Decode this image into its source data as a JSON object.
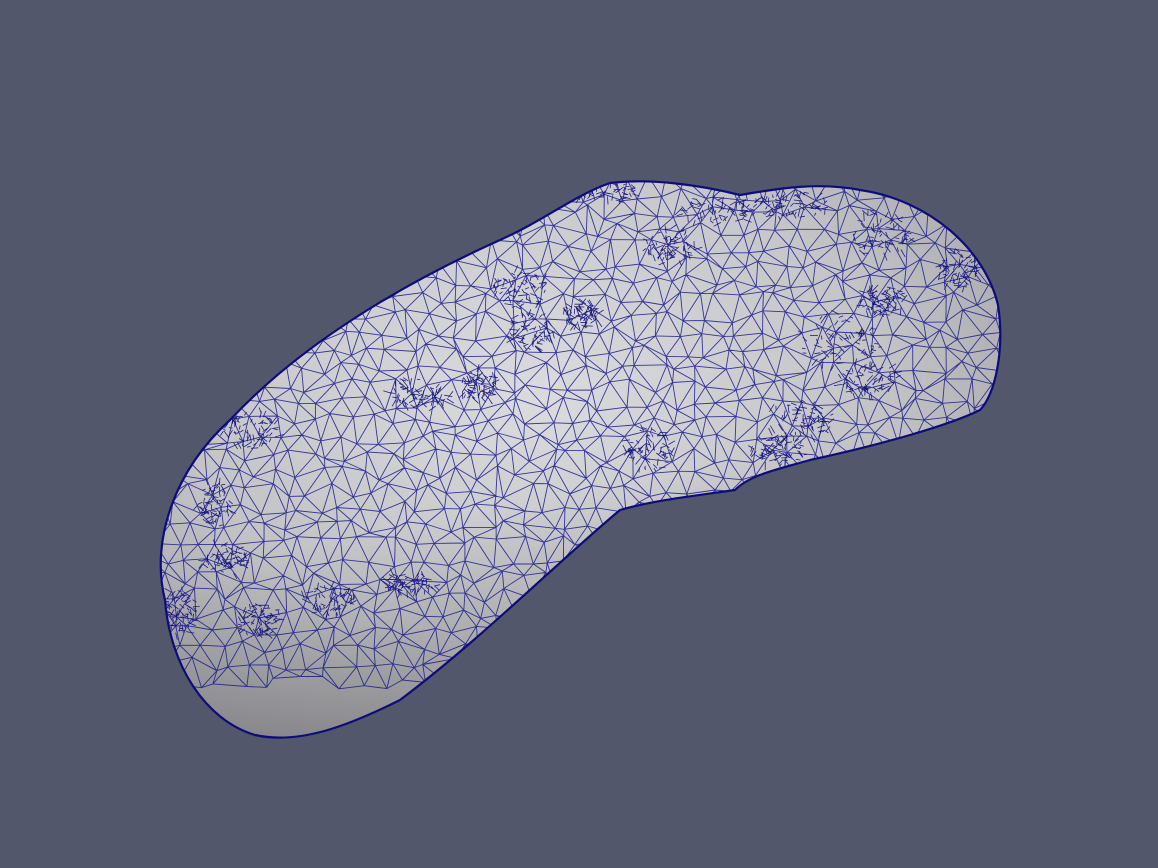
{
  "viewport": {
    "background_color": "#52576b"
  },
  "model": {
    "surface_color": "#c9c9cd",
    "surface_shadow_color": "#a9a9ae",
    "surface_highlight_color": "#e6e6e8",
    "wireframe_color": "#1a1a8c",
    "wireframe_dense_color": "#0d0d7a",
    "representation": "surface-with-edges"
  }
}
